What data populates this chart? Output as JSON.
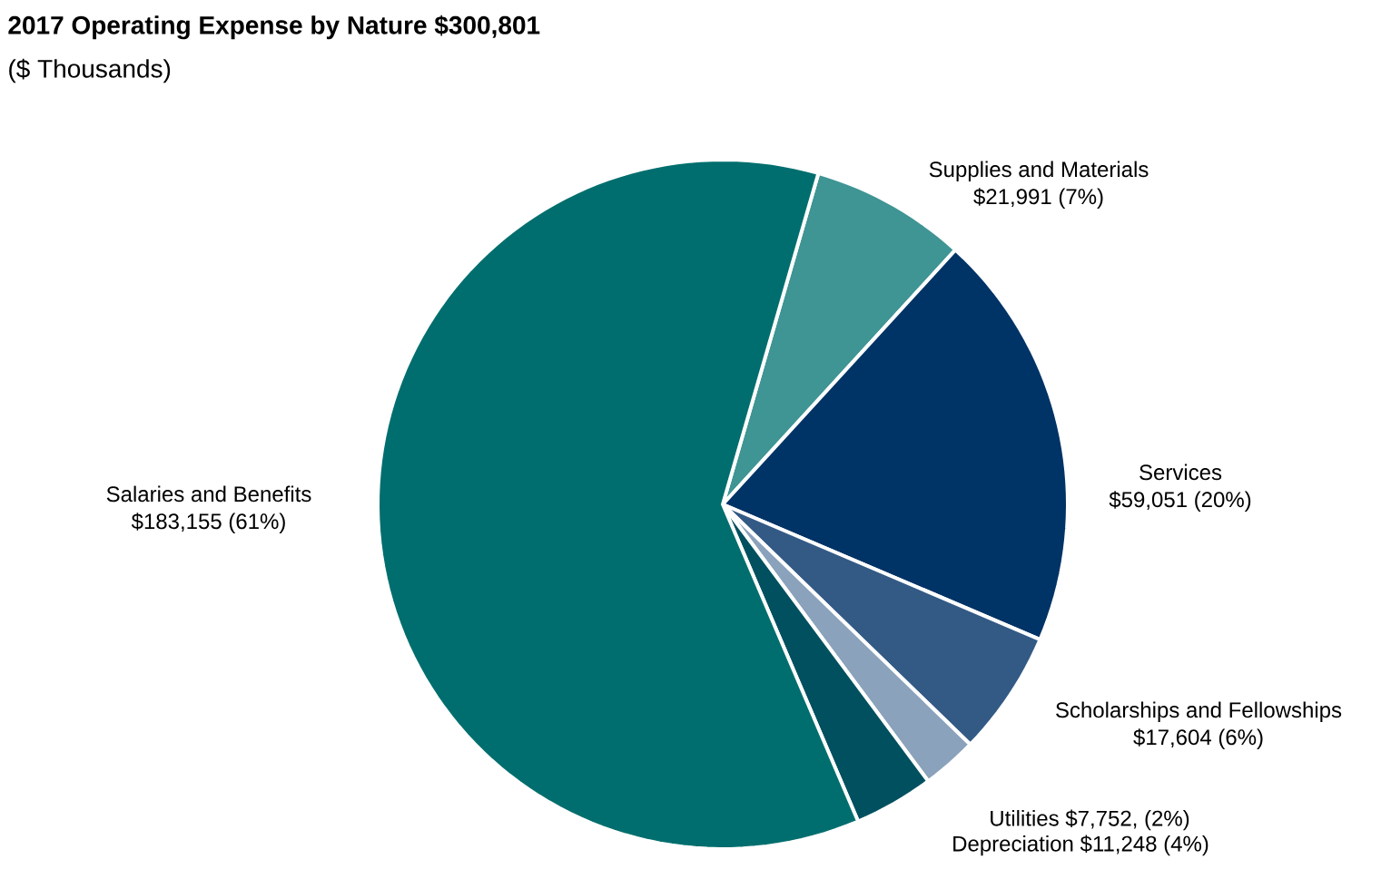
{
  "chart_data": {
    "type": "pie",
    "title": "2017 Operating Expense by Nature $300,801",
    "subtitle": "($ Thousands)",
    "categories": [
      "Supplies and Materials",
      "Services",
      "Scholarships and Fellowships",
      "Utilities",
      "Depreciation",
      "Salaries and Benefits"
    ],
    "values": [
      21991,
      59051,
      17604,
      7752,
      11248,
      183155
    ],
    "value_labels": [
      "$21,991 (7%)",
      "$59,051 (20%)",
      "$17,604 (6%)",
      "$7,752, (2%)",
      "$11,248 (4%)",
      "$183,155 (61%)"
    ],
    "colors": [
      "#3f9494",
      "#003366",
      "#335a85",
      "#8aa2bb",
      "#00505f",
      "#006e6e"
    ]
  }
}
